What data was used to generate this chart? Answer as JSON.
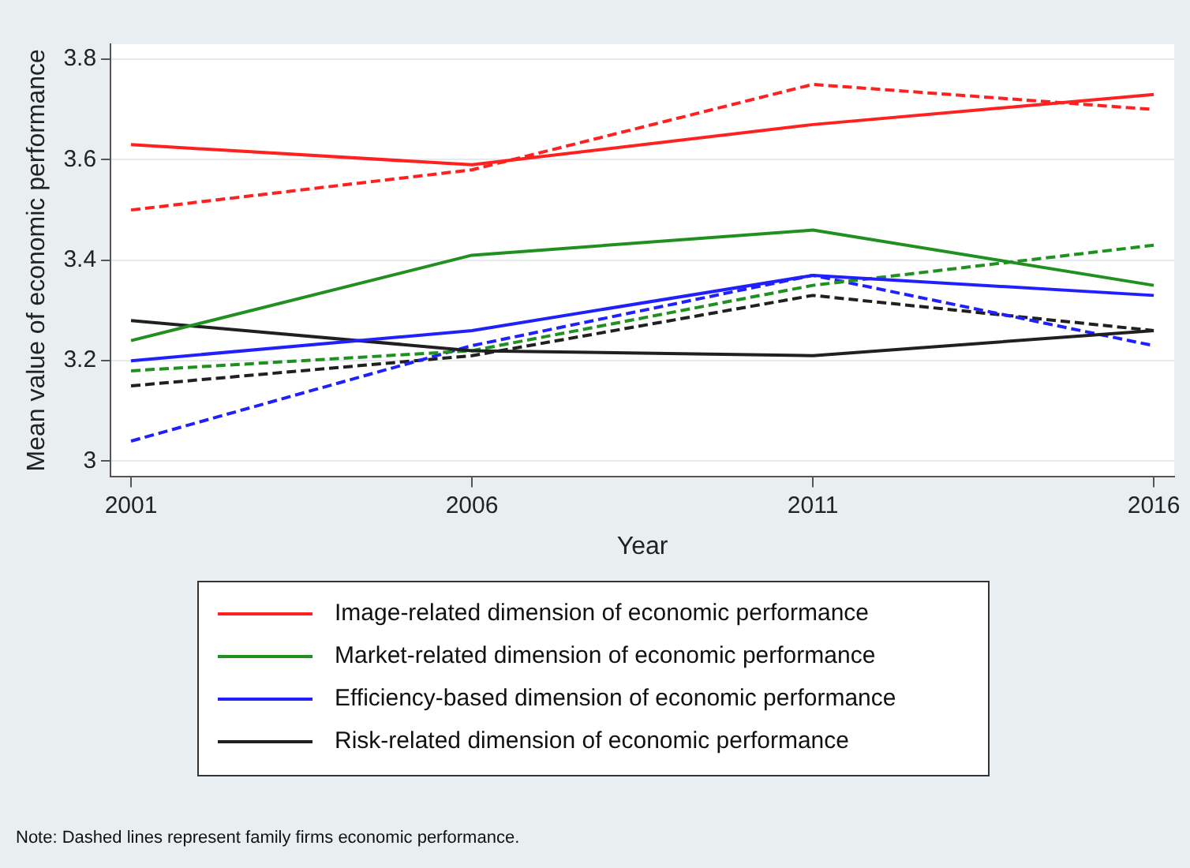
{
  "chart_data": {
    "type": "line",
    "xlabel": "Year",
    "ylabel": "Mean value of economic performance",
    "x": [
      2001,
      2006,
      2011,
      2016
    ],
    "xlim": [
      2000.7,
      2016.3
    ],
    "xticks": [
      2001,
      2006,
      2011,
      2016
    ],
    "ylim": [
      2.97,
      3.83
    ],
    "yticks": [
      3,
      3.2,
      3.4,
      3.6,
      3.8
    ],
    "grid": "y",
    "legend": "bottom",
    "marker": "none",
    "series": [
      {
        "name": "Image-related dimension of economic performance",
        "color": "#ff2020",
        "line_style": "solid",
        "values": [
          3.63,
          3.59,
          3.67,
          3.73
        ]
      },
      {
        "name": "Market-related dimension of economic performance",
        "color": "#209020",
        "line_style": "solid",
        "values": [
          3.24,
          3.41,
          3.46,
          3.35
        ]
      },
      {
        "name": "Efficiency-based dimension of economic performance",
        "color": "#2020ff",
        "line_style": "solid",
        "values": [
          3.2,
          3.26,
          3.37,
          3.33
        ]
      },
      {
        "name": "Risk-related dimension of economic performance",
        "color": "#202020",
        "line_style": "solid",
        "values": [
          3.28,
          3.22,
          3.21,
          3.26
        ]
      },
      {
        "color": "#ff2020",
        "line_style": "dashed",
        "values": [
          3.5,
          3.58,
          3.75,
          3.7
        ]
      },
      {
        "color": "#209020",
        "line_style": "dashed",
        "values": [
          3.18,
          3.22,
          3.35,
          3.43
        ]
      },
      {
        "color": "#2020ff",
        "line_style": "dashed",
        "values": [
          3.04,
          3.23,
          3.37,
          3.23
        ]
      },
      {
        "color": "#202020",
        "line_style": "dashed",
        "values": [
          3.15,
          3.21,
          3.33,
          3.26
        ]
      }
    ],
    "annotations": [
      "Note: Dashed lines represent family firms economic performance."
    ]
  }
}
